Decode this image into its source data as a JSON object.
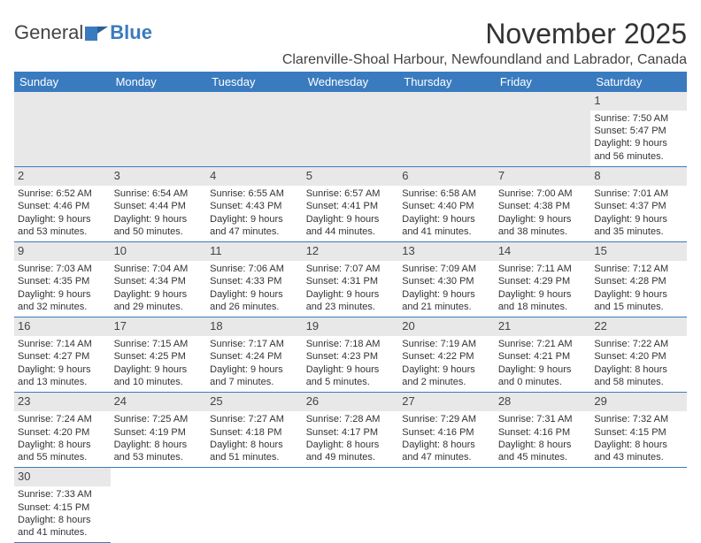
{
  "logo": {
    "general": "General",
    "blue": "Blue"
  },
  "title": "November 2025",
  "location": "Clarenville-Shoal Harbour, Newfoundland and Labrador, Canada",
  "days_of_week": [
    "Sunday",
    "Monday",
    "Tuesday",
    "Wednesday",
    "Thursday",
    "Friday",
    "Saturday"
  ],
  "colors": {
    "header_bg": "#3a7bbf",
    "header_text": "#ffffff",
    "daynum_bg": "#e8e8e8",
    "cell_border": "#3a7bbf",
    "text": "#333333"
  },
  "typography": {
    "title_fontsize": 32,
    "location_fontsize": 16,
    "dayhead_fontsize": 13,
    "cell_fontsize": 11
  },
  "grid": {
    "rows": 6,
    "cols": 7,
    "first_day_col": 6,
    "days_in_month": 30
  },
  "entries": {
    "1": {
      "sunrise": "7:50 AM",
      "sunset": "5:47 PM",
      "dl_h": 9,
      "dl_m": 56
    },
    "2": {
      "sunrise": "6:52 AM",
      "sunset": "4:46 PM",
      "dl_h": 9,
      "dl_m": 53
    },
    "3": {
      "sunrise": "6:54 AM",
      "sunset": "4:44 PM",
      "dl_h": 9,
      "dl_m": 50
    },
    "4": {
      "sunrise": "6:55 AM",
      "sunset": "4:43 PM",
      "dl_h": 9,
      "dl_m": 47
    },
    "5": {
      "sunrise": "6:57 AM",
      "sunset": "4:41 PM",
      "dl_h": 9,
      "dl_m": 44
    },
    "6": {
      "sunrise": "6:58 AM",
      "sunset": "4:40 PM",
      "dl_h": 9,
      "dl_m": 41
    },
    "7": {
      "sunrise": "7:00 AM",
      "sunset": "4:38 PM",
      "dl_h": 9,
      "dl_m": 38
    },
    "8": {
      "sunrise": "7:01 AM",
      "sunset": "4:37 PM",
      "dl_h": 9,
      "dl_m": 35
    },
    "9": {
      "sunrise": "7:03 AM",
      "sunset": "4:35 PM",
      "dl_h": 9,
      "dl_m": 32
    },
    "10": {
      "sunrise": "7:04 AM",
      "sunset": "4:34 PM",
      "dl_h": 9,
      "dl_m": 29
    },
    "11": {
      "sunrise": "7:06 AM",
      "sunset": "4:33 PM",
      "dl_h": 9,
      "dl_m": 26
    },
    "12": {
      "sunrise": "7:07 AM",
      "sunset": "4:31 PM",
      "dl_h": 9,
      "dl_m": 23
    },
    "13": {
      "sunrise": "7:09 AM",
      "sunset": "4:30 PM",
      "dl_h": 9,
      "dl_m": 21
    },
    "14": {
      "sunrise": "7:11 AM",
      "sunset": "4:29 PM",
      "dl_h": 9,
      "dl_m": 18
    },
    "15": {
      "sunrise": "7:12 AM",
      "sunset": "4:28 PM",
      "dl_h": 9,
      "dl_m": 15
    },
    "16": {
      "sunrise": "7:14 AM",
      "sunset": "4:27 PM",
      "dl_h": 9,
      "dl_m": 13
    },
    "17": {
      "sunrise": "7:15 AM",
      "sunset": "4:25 PM",
      "dl_h": 9,
      "dl_m": 10
    },
    "18": {
      "sunrise": "7:17 AM",
      "sunset": "4:24 PM",
      "dl_h": 9,
      "dl_m": 7
    },
    "19": {
      "sunrise": "7:18 AM",
      "sunset": "4:23 PM",
      "dl_h": 9,
      "dl_m": 5
    },
    "20": {
      "sunrise": "7:19 AM",
      "sunset": "4:22 PM",
      "dl_h": 9,
      "dl_m": 2
    },
    "21": {
      "sunrise": "7:21 AM",
      "sunset": "4:21 PM",
      "dl_h": 9,
      "dl_m": 0
    },
    "22": {
      "sunrise": "7:22 AM",
      "sunset": "4:20 PM",
      "dl_h": 8,
      "dl_m": 58
    },
    "23": {
      "sunrise": "7:24 AM",
      "sunset": "4:20 PM",
      "dl_h": 8,
      "dl_m": 55
    },
    "24": {
      "sunrise": "7:25 AM",
      "sunset": "4:19 PM",
      "dl_h": 8,
      "dl_m": 53
    },
    "25": {
      "sunrise": "7:27 AM",
      "sunset": "4:18 PM",
      "dl_h": 8,
      "dl_m": 51
    },
    "26": {
      "sunrise": "7:28 AM",
      "sunset": "4:17 PM",
      "dl_h": 8,
      "dl_m": 49
    },
    "27": {
      "sunrise": "7:29 AM",
      "sunset": "4:16 PM",
      "dl_h": 8,
      "dl_m": 47
    },
    "28": {
      "sunrise": "7:31 AM",
      "sunset": "4:16 PM",
      "dl_h": 8,
      "dl_m": 45
    },
    "29": {
      "sunrise": "7:32 AM",
      "sunset": "4:15 PM",
      "dl_h": 8,
      "dl_m": 43
    },
    "30": {
      "sunrise": "7:33 AM",
      "sunset": "4:15 PM",
      "dl_h": 8,
      "dl_m": 41
    }
  },
  "labels": {
    "sunrise": "Sunrise:",
    "sunset": "Sunset:",
    "daylight": "Daylight:",
    "hours": "hours",
    "and": "and",
    "minutes": "minutes."
  }
}
